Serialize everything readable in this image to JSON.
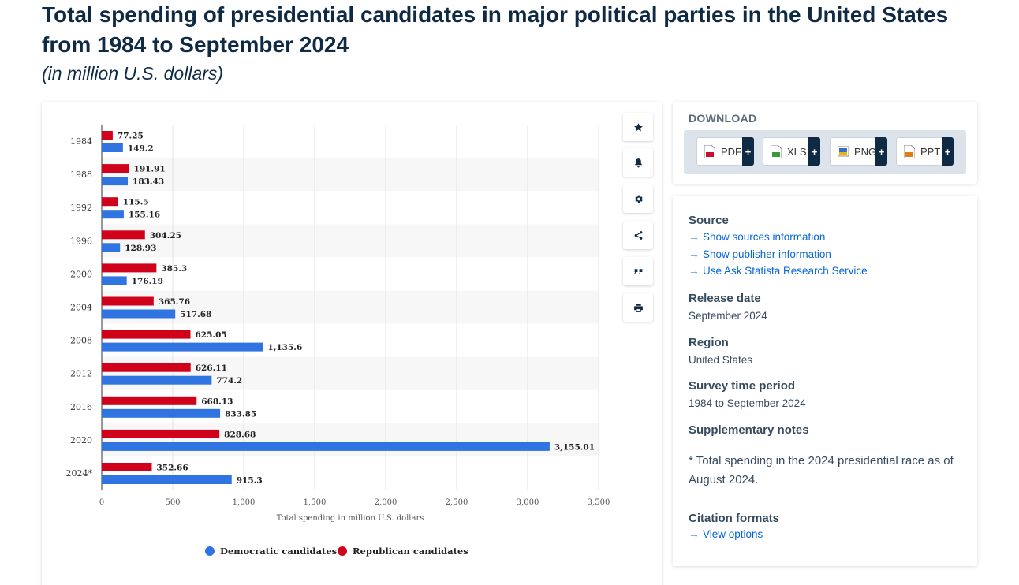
{
  "page": {
    "title": "Total spending of presidential candidates in major political parties in the United States from 1984 to September 2024",
    "subtitle": "(in million U.S. dollars)"
  },
  "toolbar": {
    "buttons": [
      {
        "name": "favorite-button",
        "icon": "star-icon"
      },
      {
        "name": "notification-button",
        "icon": "bell-icon"
      },
      {
        "name": "settings-button",
        "icon": "gear-icon"
      },
      {
        "name": "share-button",
        "icon": "share-icon"
      },
      {
        "name": "cite-button",
        "icon": "quote-icon"
      },
      {
        "name": "print-button",
        "icon": "print-icon"
      }
    ]
  },
  "download": {
    "heading": "DOWNLOAD",
    "formats": [
      {
        "label": "PDF",
        "color": "#c8102e"
      },
      {
        "label": "XLS",
        "color": "#3a9b35"
      },
      {
        "label": "PNG",
        "color": "#3b6cc7"
      },
      {
        "label": "PPT",
        "color": "#e07b1a"
      }
    ],
    "plus": "+"
  },
  "info": {
    "source_heading": "Source",
    "source_links": [
      "Show sources information",
      "Show publisher information",
      "Use Ask Statista Research Service"
    ],
    "release_heading": "Release date",
    "release_value": "September 2024",
    "region_heading": "Region",
    "region_value": "United States",
    "survey_heading": "Survey time period",
    "survey_value": "1984 to September 2024",
    "supp_heading": "Supplementary notes",
    "supp_note": "* Total spending in the 2024 presidential race as of August 2024.",
    "citation_heading": "Citation formats",
    "citation_link": "View options"
  },
  "colors": {
    "republican": "#d0021b",
    "democratic": "#2f74e0",
    "title": "#0f2a44",
    "link": "#0666d6"
  },
  "chart_data": {
    "type": "bar",
    "orientation": "horizontal",
    "categories": [
      "1984",
      "1988",
      "1992",
      "1996",
      "2000",
      "2004",
      "2008",
      "2012",
      "2016",
      "2020",
      "2024*"
    ],
    "series": [
      {
        "name": "Republican candidates",
        "color": "#d0021b",
        "values": [
          77.25,
          191.91,
          115.5,
          304.25,
          385.3,
          365.76,
          625.05,
          626.11,
          668.13,
          828.68,
          352.66
        ],
        "labels": [
          "77.25",
          "191.91",
          "115.5",
          "304.25",
          "385.3",
          "365.76",
          "625.05",
          "626.11",
          "668.13",
          "828.68",
          "352.66"
        ]
      },
      {
        "name": "Democratic candidates",
        "color": "#2f74e0",
        "values": [
          149.2,
          183.43,
          155.16,
          128.93,
          176.19,
          517.68,
          1135.6,
          774.2,
          833.85,
          3155.01,
          915.3
        ],
        "labels": [
          "149.2",
          "183.43",
          "155.16",
          "128.93",
          "176.19",
          "517.68",
          "1,135.6",
          "774.2",
          "833.85",
          "3,155.01",
          "915.3"
        ]
      }
    ],
    "xlabel": "Total spending in million U.S. dollars",
    "ylabel": "",
    "xlim": [
      0,
      3500
    ],
    "ticks": [
      0,
      500,
      1000,
      1500,
      2000,
      2500,
      3000,
      3500
    ],
    "tick_labels": [
      "0",
      "500",
      "1,000",
      "1,500",
      "2,000",
      "2,500",
      "3,000",
      "3,500"
    ],
    "legend": [
      "Democratic candidates",
      "Republican candidates"
    ],
    "legend_position": "bottom",
    "grid": true
  }
}
